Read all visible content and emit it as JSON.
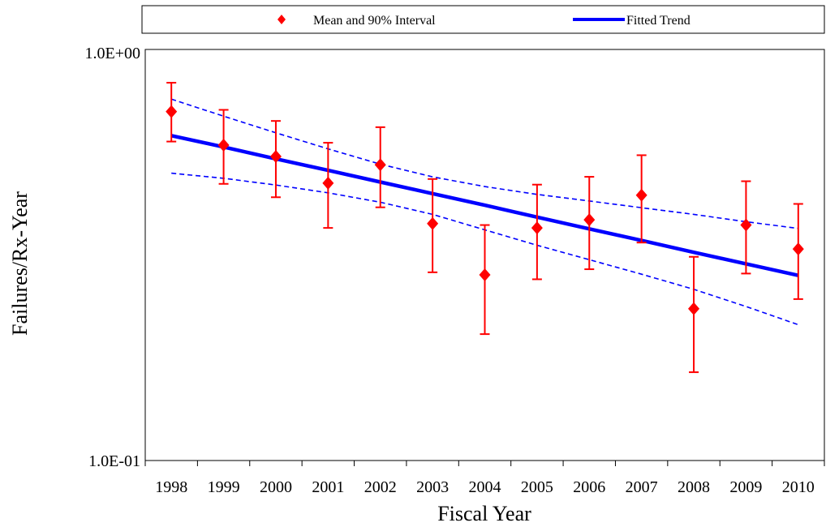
{
  "chart_data": {
    "type": "line",
    "title": "",
    "xlabel": "Fiscal Year",
    "ylabel": "Failures/Rx-Year",
    "y_scale": "log",
    "ylim": [
      0.1,
      1.0
    ],
    "y_tick_labels": [
      "1.0E-01",
      "1.0E+00"
    ],
    "categories": [
      "1998",
      "1999",
      "2000",
      "2001",
      "2002",
      "2003",
      "2004",
      "2005",
      "2006",
      "2007",
      "2008",
      "2009",
      "2010"
    ],
    "legend": {
      "position": "top",
      "entries": [
        "Mean and 90% Interval",
        "Fitted Trend"
      ]
    },
    "series": [
      {
        "name": "Mean and 90% Interval",
        "style": "diamond-markers-with-error-bars",
        "color": "#ff0000",
        "mean": [
          0.706,
          0.585,
          0.549,
          0.473,
          0.524,
          0.377,
          0.283,
          0.368,
          0.385,
          0.442,
          0.234,
          0.374,
          0.327
        ],
        "lower": [
          0.597,
          0.471,
          0.437,
          0.368,
          0.413,
          0.287,
          0.203,
          0.276,
          0.292,
          0.339,
          0.164,
          0.285,
          0.247
        ],
        "upper": [
          0.83,
          0.713,
          0.67,
          0.593,
          0.647,
          0.484,
          0.374,
          0.469,
          0.49,
          0.553,
          0.313,
          0.478,
          0.421
        ]
      },
      {
        "name": "Fitted Trend",
        "style": "solid-line",
        "color": "#0000ff",
        "values": [
          0.617,
          0.579,
          0.542,
          0.508,
          0.476,
          0.446,
          0.418,
          0.391,
          0.366,
          0.343,
          0.321,
          0.301,
          0.282
        ]
      },
      {
        "name": "upper bound",
        "style": "dashed-line",
        "color": "#0000ff",
        "values": [
          0.757,
          0.688,
          0.627,
          0.573,
          0.526,
          0.49,
          0.464,
          0.444,
          0.428,
          0.412,
          0.397,
          0.381,
          0.367
        ]
      },
      {
        "name": "lower bound",
        "style": "dashed-line",
        "color": "#0000ff",
        "values": [
          0.5,
          0.486,
          0.468,
          0.448,
          0.425,
          0.397,
          0.364,
          0.334,
          0.308,
          0.284,
          0.261,
          0.237,
          0.214
        ]
      }
    ]
  }
}
